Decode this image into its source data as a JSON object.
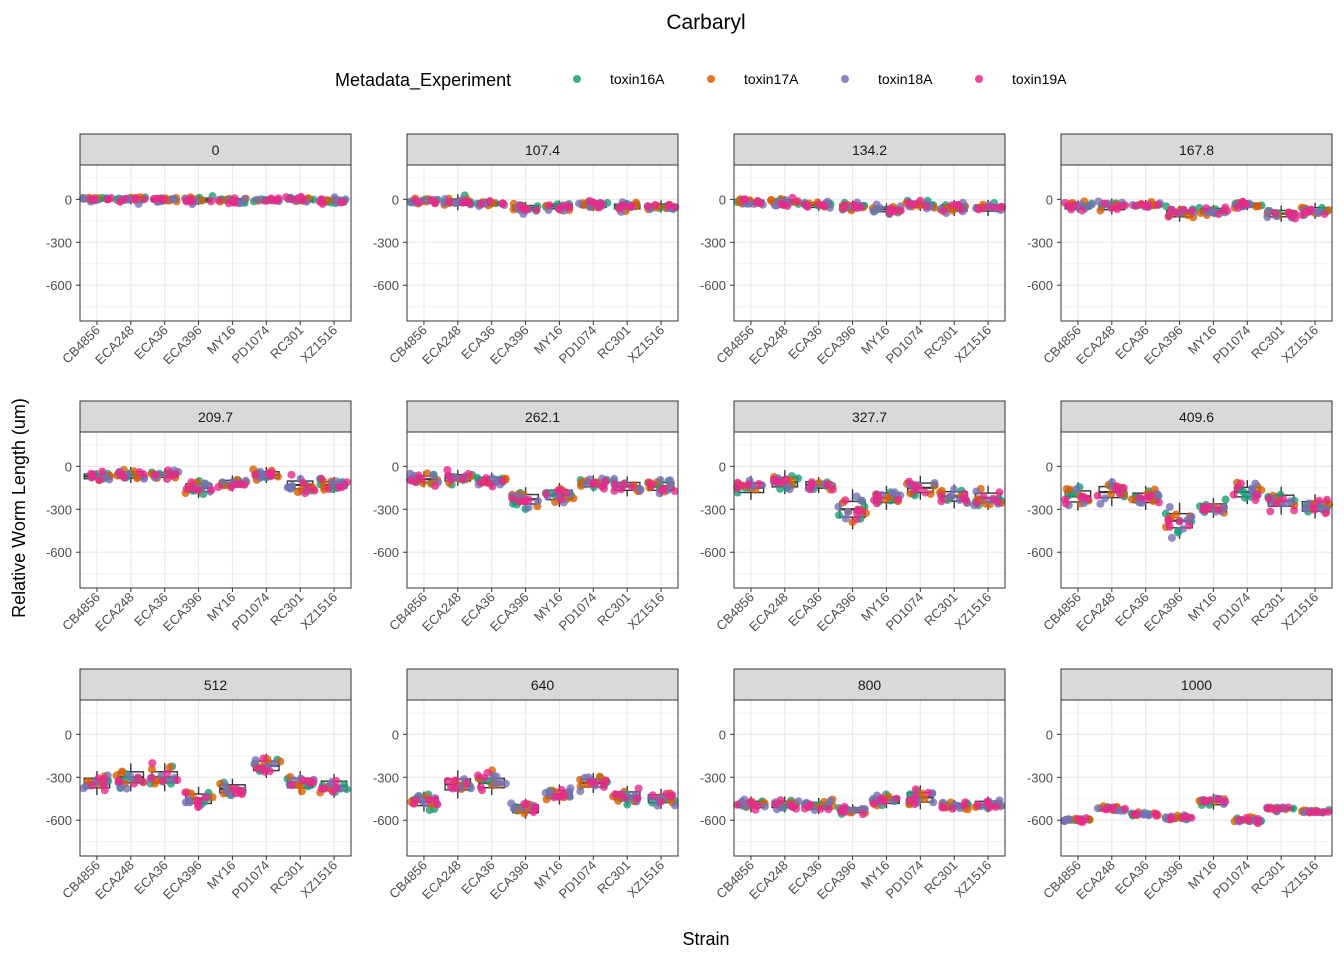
{
  "chart_data": {
    "type": "scatter",
    "title": "Carbaryl",
    "xlabel": "Strain",
    "ylabel": "Relative Worm Length (um)",
    "ylim": [
      -850,
      240
    ],
    "yticks": [
      0,
      -300,
      -600
    ],
    "categories": [
      "CB4856",
      "ECA248",
      "ECA36",
      "ECA396",
      "MY16",
      "PD1074",
      "RC301",
      "XZ1516"
    ],
    "legend": {
      "title": "Metadata_Experiment",
      "position": "top",
      "entries": [
        {
          "name": "toxin16A",
          "color": "#1b9e77"
        },
        {
          "name": "toxin17A",
          "color": "#d95f02"
        },
        {
          "name": "toxin18A",
          "color": "#7570b3"
        },
        {
          "name": "toxin19A",
          "color": "#e7298a"
        }
      ]
    },
    "panels": [
      {
        "label": "0",
        "medians": [
          0,
          0,
          -5,
          -5,
          -10,
          -5,
          -5,
          -5
        ],
        "spread": [
          20,
          25,
          20,
          25,
          25,
          15,
          20,
          25
        ]
      },
      {
        "label": "107.4",
        "medians": [
          -10,
          -20,
          -30,
          -60,
          -50,
          -40,
          -50,
          -50
        ],
        "spread": [
          20,
          40,
          20,
          30,
          30,
          30,
          30,
          30
        ]
      },
      {
        "label": "134.2",
        "medians": [
          -20,
          -20,
          -40,
          -50,
          -70,
          -40,
          -60,
          -60
        ],
        "spread": [
          25,
          30,
          30,
          30,
          30,
          30,
          40,
          40
        ]
      },
      {
        "label": "167.8",
        "medians": [
          -50,
          -50,
          -40,
          -100,
          -80,
          -40,
          -100,
          -80
        ],
        "spread": [
          30,
          40,
          25,
          40,
          30,
          25,
          40,
          40
        ]
      },
      {
        "label": "209.7",
        "medians": [
          -70,
          -60,
          -60,
          -150,
          -120,
          -60,
          -130,
          -130
        ],
        "spread": [
          30,
          40,
          30,
          50,
          40,
          40,
          50,
          40
        ]
      },
      {
        "label": "262.1",
        "medians": [
          -90,
          -80,
          -100,
          -230,
          -200,
          -120,
          -140,
          -140
        ],
        "spread": [
          40,
          40,
          40,
          60,
          60,
          40,
          50,
          50
        ]
      },
      {
        "label": "327.7",
        "medians": [
          -150,
          -110,
          -130,
          -300,
          -220,
          -150,
          -210,
          -220
        ],
        "spread": [
          60,
          60,
          40,
          100,
          60,
          60,
          60,
          60
        ]
      },
      {
        "label": "409.6",
        "medians": [
          -210,
          -180,
          -220,
          -380,
          -290,
          -180,
          -240,
          -280
        ],
        "spread": [
          70,
          70,
          60,
          90,
          50,
          60,
          70,
          60
        ]
      },
      {
        "label": "512",
        "medians": [
          -340,
          -300,
          -300,
          -450,
          -380,
          -220,
          -340,
          -360
        ],
        "spread": [
          60,
          70,
          70,
          60,
          50,
          60,
          60,
          60
        ]
      },
      {
        "label": "640",
        "medians": [
          -470,
          -350,
          -340,
          -520,
          -420,
          -340,
          -430,
          -450
        ],
        "spread": [
          50,
          70,
          60,
          50,
          50,
          50,
          50,
          50
        ]
      },
      {
        "label": "800",
        "medians": [
          -490,
          -490,
          -500,
          -530,
          -460,
          -440,
          -500,
          -490
        ],
        "spread": [
          40,
          40,
          40,
          30,
          40,
          60,
          30,
          40
        ]
      },
      {
        "label": "1000",
        "medians": [
          -600,
          -520,
          -560,
          -580,
          -470,
          -600,
          -520,
          -540
        ],
        "spread": [
          20,
          20,
          15,
          15,
          40,
          20,
          15,
          10
        ]
      }
    ]
  }
}
